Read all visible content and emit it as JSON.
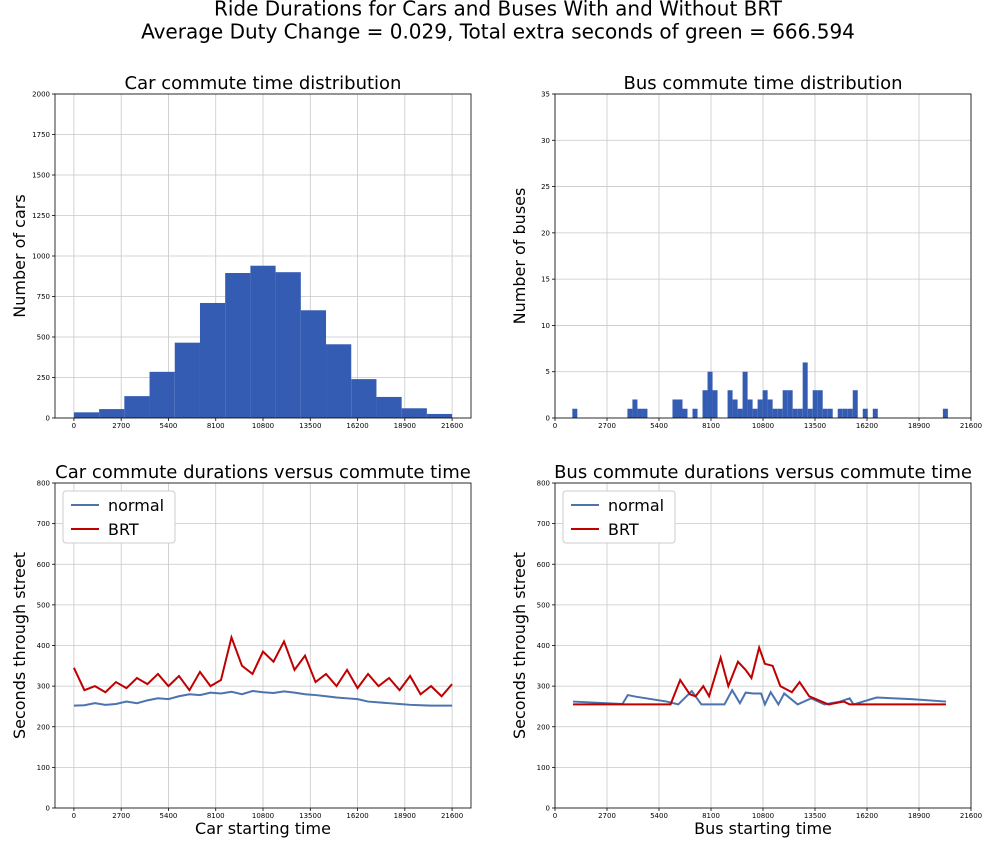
{
  "suptitle": [
    "Ride Durations for Cars and Buses With and Without BRT",
    "Average Duty Change = 0.029, Total extra seconds of green = 666.594"
  ],
  "chart_data": [
    {
      "type": "histogram",
      "title": "Car commute time distribution",
      "ylabel": "Number of cars",
      "color": "#345cb3",
      "grid": true,
      "bins": [
        0,
        1440,
        2880,
        4320,
        5760,
        7200,
        8640,
        10080,
        11520,
        12960,
        14400,
        15840,
        17280,
        18720,
        20160,
        21600
      ],
      "counts": [
        35,
        55,
        135,
        285,
        465,
        710,
        895,
        940,
        900,
        665,
        455,
        240,
        130,
        60,
        25
      ],
      "xlim": [
        -1080,
        22680
      ],
      "xticks": [
        0,
        2700,
        5400,
        8100,
        10800,
        13500,
        16200,
        18900,
        21600
      ],
      "ylim": [
        0,
        2000
      ],
      "yticks": [
        0,
        250,
        500,
        750,
        1000,
        1250,
        1500,
        1750,
        2000
      ]
    },
    {
      "type": "histogram",
      "title": "Bus commute time distribution",
      "ylabel": "Number of buses",
      "color": "#345cb3",
      "grid": true,
      "bins": [
        900,
        1160,
        1420,
        1680,
        1940,
        2200,
        2460,
        2720,
        2980,
        3240,
        3500,
        3760,
        4020,
        4280,
        4540,
        4800,
        5060,
        5320,
        5580,
        5840,
        6100,
        6360,
        6620,
        6880,
        7140,
        7400,
        7660,
        7920,
        8180,
        8440,
        8700,
        8960,
        9220,
        9480,
        9740,
        10000,
        10260,
        10520,
        10780,
        11040,
        11300,
        11560,
        11820,
        12080,
        12340,
        12600,
        12860,
        13120,
        13380,
        13640,
        13900,
        14160,
        14420,
        14680,
        14940,
        15200,
        15460,
        15720,
        15980,
        16240,
        16500,
        16760,
        17020,
        17280,
        17540,
        17800,
        18060,
        18320,
        18580,
        18840,
        19100,
        19360,
        19620,
        19880,
        20140,
        20400
      ],
      "counts": [
        1,
        0,
        0,
        0,
        0,
        0,
        0,
        0,
        0,
        0,
        0,
        1,
        2,
        1,
        1,
        0,
        0,
        0,
        0,
        0,
        2,
        2,
        1,
        0,
        1,
        0,
        3,
        5,
        3,
        0,
        0,
        3,
        2,
        1,
        5,
        2,
        1,
        2,
        3,
        2,
        1,
        1,
        3,
        3,
        1,
        1,
        6,
        1,
        3,
        3,
        1,
        1,
        0,
        1,
        1,
        1,
        3,
        0,
        1,
        0,
        1,
        0,
        0,
        0,
        0,
        0,
        0,
        0,
        0,
        0,
        0,
        0,
        0,
        0,
        1
      ],
      "xlim": [
        0,
        21600
      ],
      "xticks": [
        0,
        2700,
        5400,
        8100,
        10800,
        13500,
        16200,
        18900,
        21600
      ],
      "ylim": [
        0,
        35
      ],
      "yticks": [
        0,
        5,
        10,
        15,
        20,
        25,
        30,
        35
      ]
    },
    {
      "type": "line",
      "title": "Car commute durations versus commute time",
      "ylabel": "Seconds through street",
      "xlabel": "Car starting time",
      "grid": true,
      "legend": "upper left",
      "x": [
        0,
        600,
        1200,
        1800,
        2400,
        3000,
        3600,
        4200,
        4800,
        5400,
        6000,
        6600,
        7200,
        7800,
        8400,
        9000,
        9600,
        10200,
        10800,
        11400,
        12000,
        12600,
        13200,
        13800,
        14400,
        15000,
        15600,
        16200,
        16800,
        17400,
        18000,
        18600,
        19200,
        19800,
        20400,
        21000,
        21600
      ],
      "series": [
        {
          "name": "normal",
          "color": "#4c72b0",
          "values": [
            252,
            253,
            258,
            254,
            256,
            262,
            258,
            265,
            270,
            268,
            275,
            280,
            278,
            284,
            282,
            286,
            280,
            288,
            285,
            283,
            287,
            284,
            280,
            278,
            275,
            272,
            270,
            268,
            262,
            260,
            258,
            256,
            254,
            253,
            252,
            252,
            252
          ]
        },
        {
          "name": "BRT",
          "color": "#c00000",
          "values": [
            345,
            290,
            300,
            285,
            310,
            295,
            320,
            305,
            330,
            300,
            325,
            290,
            335,
            300,
            315,
            420,
            350,
            330,
            385,
            360,
            410,
            340,
            375,
            310,
            330,
            300,
            340,
            295,
            330,
            300,
            320,
            290,
            325,
            280,
            300,
            275,
            305
          ]
        }
      ],
      "xlim": [
        -1080,
        22680
      ],
      "xticks": [
        0,
        2700,
        5400,
        8100,
        10800,
        13500,
        16200,
        18900,
        21600
      ],
      "ylim": [
        0,
        800
      ],
      "yticks": [
        0,
        100,
        200,
        300,
        400,
        500,
        600,
        700,
        800
      ]
    },
    {
      "type": "line",
      "title": "Bus commute durations versus commute time",
      "ylabel": "Seconds through street",
      "xlabel": "Bus starting time",
      "grid": true,
      "legend": "upper left",
      "series": [
        {
          "name": "normal",
          "color": "#4c72b0",
          "x": [
            935,
            3500,
            3780,
            4200,
            5800,
            6400,
            7100,
            7600,
            8200,
            8800,
            9200,
            9600,
            9900,
            10300,
            10700,
            10900,
            11200,
            11600,
            11900,
            12600,
            13300,
            14000,
            14800,
            15300,
            15500,
            16700,
            18500,
            20300
          ],
          "values": [
            262,
            256,
            278,
            274,
            262,
            255,
            288,
            255,
            255,
            255,
            290,
            258,
            284,
            282,
            282,
            255,
            285,
            255,
            282,
            255,
            270,
            255,
            262,
            270,
            255,
            272,
            268,
            262
          ]
        },
        {
          "name": "BRT",
          "color": "#c00000",
          "x": [
            935,
            6000,
            6500,
            7000,
            7300,
            7700,
            8000,
            8600,
            9000,
            9500,
            9900,
            10200,
            10600,
            10900,
            11300,
            11700,
            12300,
            12700,
            13200,
            14200,
            15000,
            15300,
            16000,
            20300
          ],
          "values": [
            255,
            255,
            315,
            280,
            275,
            300,
            275,
            370,
            300,
            360,
            340,
            320,
            395,
            355,
            350,
            300,
            285,
            310,
            275,
            255,
            262,
            255,
            255,
            255
          ]
        }
      ],
      "xlim": [
        0,
        21600
      ],
      "xticks": [
        0,
        2700,
        5400,
        8100,
        10800,
        13500,
        16200,
        18900,
        21600
      ],
      "ylim": [
        0,
        800
      ],
      "yticks": [
        0,
        100,
        200,
        300,
        400,
        500,
        600,
        700,
        800
      ]
    }
  ]
}
